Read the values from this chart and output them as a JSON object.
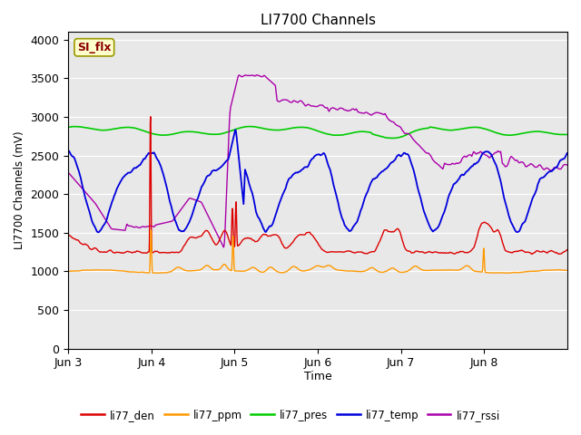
{
  "title": "LI7700 Channels",
  "ylabel": "LI7700 Channels (mV)",
  "xlabel": "Time",
  "ylim": [
    0,
    4100
  ],
  "yticks": [
    0,
    500,
    1000,
    1500,
    2000,
    2500,
    3000,
    3500,
    4000
  ],
  "background_color": "#e8e8e8",
  "fig_bg": "#ffffff",
  "annotation_text": "SI_flx",
  "annotation_box_color": "#ffffcc",
  "annotation_text_color": "#8b0000",
  "colors": {
    "li77_den": "#dd0000",
    "li77_ppm": "#ff9900",
    "li77_pres": "#00cc00",
    "li77_temp": "#0000dd",
    "li77_rssi": "#aa00aa"
  },
  "legend_labels": [
    "li77_den",
    "li77_ppm",
    "li77_pres",
    "li77_temp",
    "li77_rssi"
  ],
  "x_tick_labels": [
    "Jun 3",
    "Jun 4",
    "Jun 5",
    "Jun 6",
    "Jun 7",
    "Jun 8"
  ],
  "x_tick_positions": [
    0,
    288,
    576,
    864,
    1152,
    1440
  ],
  "total_points": 1728
}
